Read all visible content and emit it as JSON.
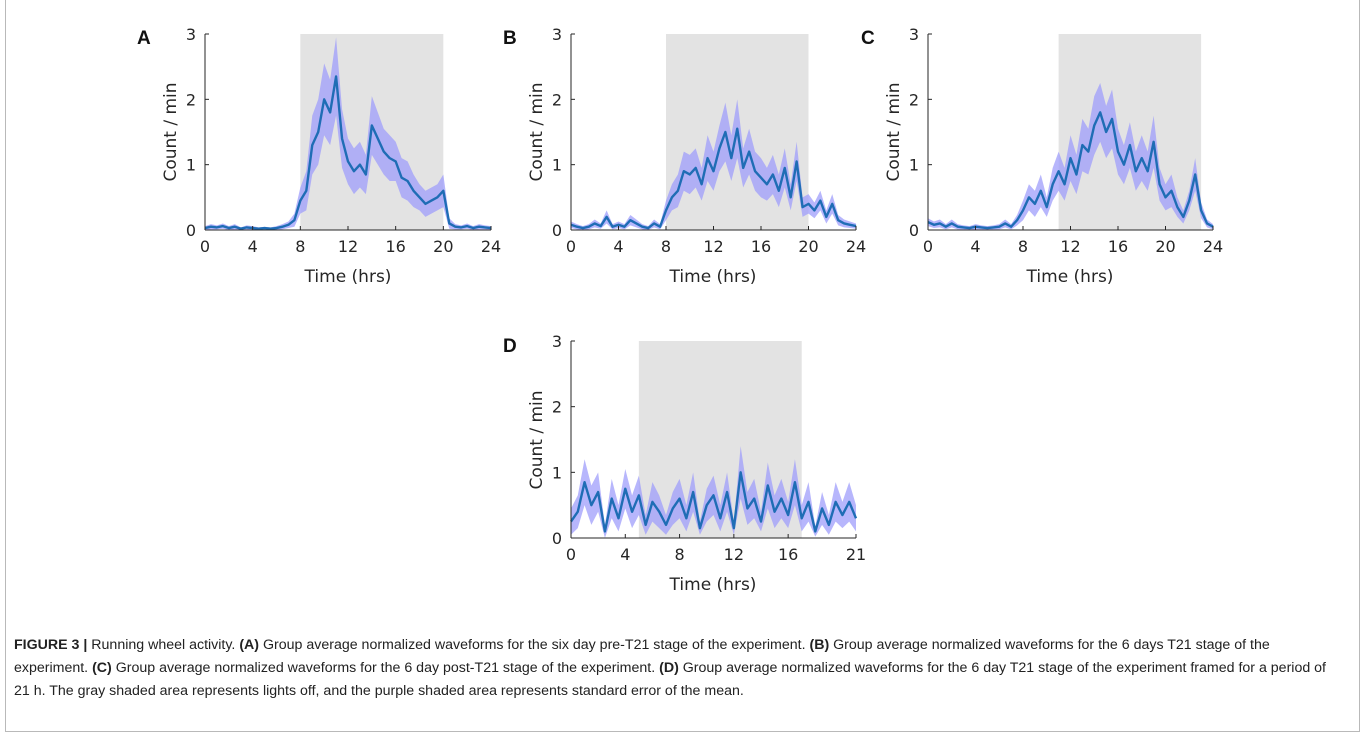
{
  "chart_data": [
    {
      "type": "line",
      "panel_label": "A",
      "xlabel": "Time (hrs)",
      "ylabel": "Count / min",
      "xlim": [
        0,
        24
      ],
      "ylim": [
        0,
        3
      ],
      "xticks": [
        "0",
        "4",
        "8",
        "12",
        "16",
        "20",
        "24"
      ],
      "yticks": [
        "0",
        "1",
        "2",
        "3"
      ],
      "lights_off": [
        8,
        20
      ],
      "series": [
        {
          "color": "#1f6db5",
          "band_color": "#9f9dfb",
          "x": [
            0,
            0.5,
            1,
            1.5,
            2,
            2.5,
            3,
            3.5,
            4,
            4.5,
            5,
            5.5,
            6,
            6.5,
            7,
            7.5,
            8,
            8.5,
            9,
            9.5,
            10,
            10.5,
            11,
            11.5,
            12,
            12.5,
            13,
            13.5,
            14,
            14.5,
            15,
            15.5,
            16,
            16.5,
            17,
            17.5,
            18,
            18.5,
            19,
            19.5,
            20,
            20.5,
            21,
            21.5,
            22,
            22.5,
            23,
            23.5,
            24
          ],
          "y": [
            0.03,
            0.05,
            0.04,
            0.06,
            0.03,
            0.05,
            0.02,
            0.04,
            0.03,
            0.02,
            0.03,
            0.02,
            0.03,
            0.05,
            0.08,
            0.15,
            0.45,
            0.6,
            1.3,
            1.5,
            2.0,
            1.8,
            2.35,
            1.4,
            1.05,
            0.9,
            1.0,
            0.85,
            1.6,
            1.4,
            1.2,
            1.1,
            1.05,
            0.8,
            0.75,
            0.6,
            0.5,
            0.4,
            0.45,
            0.5,
            0.6,
            0.1,
            0.05,
            0.04,
            0.06,
            0.03,
            0.05,
            0.04,
            0.03
          ],
          "sem": [
            0.03,
            0.04,
            0.03,
            0.04,
            0.03,
            0.04,
            0.02,
            0.03,
            0.03,
            0.02,
            0.02,
            0.02,
            0.03,
            0.04,
            0.05,
            0.1,
            0.2,
            0.3,
            0.45,
            0.5,
            0.55,
            0.5,
            0.6,
            0.45,
            0.35,
            0.35,
            0.35,
            0.3,
            0.45,
            0.4,
            0.35,
            0.35,
            0.3,
            0.3,
            0.3,
            0.25,
            0.2,
            0.2,
            0.2,
            0.2,
            0.25,
            0.08,
            0.04,
            0.03,
            0.04,
            0.03,
            0.04,
            0.03,
            0.03
          ]
        }
      ]
    },
    {
      "type": "line",
      "panel_label": "B",
      "xlabel": "Time (hrs)",
      "ylabel": "Count / min",
      "xlim": [
        0,
        24
      ],
      "ylim": [
        0,
        3
      ],
      "xticks": [
        "0",
        "4",
        "8",
        "12",
        "16",
        "20",
        "24"
      ],
      "yticks": [
        "0",
        "1",
        "2",
        "3"
      ],
      "lights_off": [
        8,
        20
      ],
      "series": [
        {
          "color": "#1f6db5",
          "band_color": "#9f9dfb",
          "x": [
            0,
            0.5,
            1,
            1.5,
            2,
            2.5,
            3,
            3.5,
            4,
            4.5,
            5,
            5.5,
            6,
            6.5,
            7,
            7.5,
            8,
            8.5,
            9,
            9.5,
            10,
            10.5,
            11,
            11.5,
            12,
            12.5,
            13,
            13.5,
            14,
            14.5,
            15,
            15.5,
            16,
            16.5,
            17,
            17.5,
            18,
            18.5,
            19,
            19.5,
            20,
            20.5,
            21,
            21.5,
            22,
            22.5,
            23,
            23.5,
            24
          ],
          "y": [
            0.08,
            0.05,
            0.03,
            0.05,
            0.1,
            0.06,
            0.2,
            0.05,
            0.08,
            0.05,
            0.15,
            0.1,
            0.05,
            0.03,
            0.1,
            0.05,
            0.3,
            0.5,
            0.6,
            0.9,
            0.85,
            0.95,
            0.7,
            1.1,
            0.9,
            1.25,
            1.5,
            1.1,
            1.55,
            0.95,
            1.2,
            0.9,
            0.8,
            0.7,
            0.85,
            0.6,
            0.95,
            0.5,
            1.05,
            0.35,
            0.4,
            0.3,
            0.45,
            0.2,
            0.4,
            0.15,
            0.1,
            0.08,
            0.06
          ],
          "sem": [
            0.05,
            0.04,
            0.03,
            0.04,
            0.06,
            0.04,
            0.1,
            0.04,
            0.05,
            0.04,
            0.08,
            0.06,
            0.04,
            0.03,
            0.06,
            0.04,
            0.15,
            0.2,
            0.25,
            0.3,
            0.3,
            0.3,
            0.25,
            0.35,
            0.3,
            0.35,
            0.45,
            0.35,
            0.45,
            0.3,
            0.35,
            0.3,
            0.3,
            0.25,
            0.3,
            0.25,
            0.3,
            0.2,
            0.3,
            0.15,
            0.15,
            0.12,
            0.15,
            0.1,
            0.15,
            0.08,
            0.06,
            0.05,
            0.04
          ]
        }
      ]
    },
    {
      "type": "line",
      "panel_label": "C",
      "xlabel": "Time (hrs)",
      "ylabel": "Count / min",
      "xlim": [
        0,
        24
      ],
      "ylim": [
        0,
        3
      ],
      "xticks": [
        "0",
        "4",
        "8",
        "12",
        "16",
        "20",
        "24"
      ],
      "yticks": [
        "0",
        "1",
        "2",
        "3"
      ],
      "lights_off": [
        11,
        23
      ],
      "series": [
        {
          "color": "#1f6db5",
          "band_color": "#9f9dfb",
          "x": [
            0,
            0.5,
            1,
            1.5,
            2,
            2.5,
            3,
            3.5,
            4,
            4.5,
            5,
            5.5,
            6,
            6.5,
            7,
            7.5,
            8,
            8.5,
            9,
            9.5,
            10,
            10.5,
            11,
            11.5,
            12,
            12.5,
            13,
            13.5,
            14,
            14.5,
            15,
            15.5,
            16,
            16.5,
            17,
            17.5,
            18,
            18.5,
            19,
            19.5,
            20,
            20.5,
            21,
            21.5,
            22,
            22.5,
            23,
            23.5,
            24
          ],
          "y": [
            0.12,
            0.08,
            0.1,
            0.05,
            0.1,
            0.05,
            0.04,
            0.03,
            0.05,
            0.04,
            0.03,
            0.04,
            0.05,
            0.1,
            0.05,
            0.15,
            0.3,
            0.5,
            0.4,
            0.6,
            0.35,
            0.7,
            0.9,
            0.7,
            1.1,
            0.85,
            1.3,
            1.2,
            1.6,
            1.8,
            1.5,
            1.7,
            1.2,
            1.0,
            1.3,
            0.9,
            1.1,
            0.9,
            1.35,
            0.7,
            0.5,
            0.6,
            0.35,
            0.2,
            0.45,
            0.85,
            0.3,
            0.1,
            0.05
          ],
          "sem": [
            0.06,
            0.05,
            0.06,
            0.04,
            0.06,
            0.04,
            0.03,
            0.03,
            0.04,
            0.03,
            0.03,
            0.03,
            0.04,
            0.06,
            0.04,
            0.08,
            0.15,
            0.2,
            0.2,
            0.25,
            0.15,
            0.25,
            0.3,
            0.25,
            0.35,
            0.3,
            0.4,
            0.35,
            0.45,
            0.45,
            0.4,
            0.45,
            0.35,
            0.3,
            0.35,
            0.3,
            0.35,
            0.3,
            0.4,
            0.25,
            0.2,
            0.25,
            0.15,
            0.1,
            0.15,
            0.25,
            0.12,
            0.06,
            0.04
          ]
        }
      ]
    },
    {
      "type": "line",
      "panel_label": "D",
      "xlabel": "Time (hrs)",
      "ylabel": "Count / min",
      "xlim": [
        0,
        21
      ],
      "ylim": [
        0,
        3
      ],
      "xticks": [
        "0",
        "4",
        "8",
        "12",
        "16",
        "21"
      ],
      "yticks": [
        "0",
        "1",
        "2",
        "3"
      ],
      "lights_off": [
        5,
        17
      ],
      "series": [
        {
          "color": "#1f6db5",
          "band_color": "#9f9dfb",
          "x": [
            0,
            0.5,
            1,
            1.5,
            2,
            2.5,
            3,
            3.5,
            4,
            4.5,
            5,
            5.5,
            6,
            6.5,
            7,
            7.5,
            8,
            8.5,
            9,
            9.5,
            10,
            10.5,
            11,
            11.5,
            12,
            12.5,
            13,
            13.5,
            14,
            14.5,
            15,
            15.5,
            16,
            16.5,
            17,
            17.5,
            18,
            18.5,
            19,
            19.5,
            20,
            20.5,
            21
          ],
          "y": [
            0.25,
            0.4,
            0.85,
            0.5,
            0.7,
            0.1,
            0.6,
            0.3,
            0.75,
            0.4,
            0.65,
            0.2,
            0.55,
            0.4,
            0.2,
            0.45,
            0.6,
            0.3,
            0.7,
            0.15,
            0.5,
            0.65,
            0.3,
            0.7,
            0.15,
            1.0,
            0.45,
            0.6,
            0.25,
            0.8,
            0.4,
            0.6,
            0.35,
            0.85,
            0.3,
            0.55,
            0.1,
            0.45,
            0.2,
            0.55,
            0.35,
            0.55,
            0.3
          ],
          "sem": [
            0.2,
            0.25,
            0.35,
            0.3,
            0.3,
            0.1,
            0.3,
            0.2,
            0.3,
            0.25,
            0.3,
            0.15,
            0.3,
            0.25,
            0.15,
            0.25,
            0.3,
            0.2,
            0.3,
            0.1,
            0.25,
            0.3,
            0.2,
            0.3,
            0.1,
            0.4,
            0.25,
            0.3,
            0.15,
            0.35,
            0.25,
            0.3,
            0.2,
            0.35,
            0.2,
            0.3,
            0.08,
            0.25,
            0.15,
            0.3,
            0.2,
            0.3,
            0.2
          ]
        }
      ]
    }
  ],
  "caption": {
    "label": "FIGURE 3 |",
    "title": "Running wheel activity.",
    "ref_a": "(A)",
    "text_a": "Group average normalized waveforms for the six day pre-T21 stage of the experiment.",
    "ref_b": "(B)",
    "text_b": "Group average normalized waveforms for the 6 days T21 stage of the experiment.",
    "ref_c": "(C)",
    "text_c": "Group average normalized waveforms for the 6 day post-T21 stage of the experiment.",
    "ref_d": "(D)",
    "text_d": "Group average normalized waveforms for the 6 day T21 stage of the experiment framed for a period of 21 h. The gray shaded area represents lights off, and the purple shaded area represents standard error of the mean."
  }
}
